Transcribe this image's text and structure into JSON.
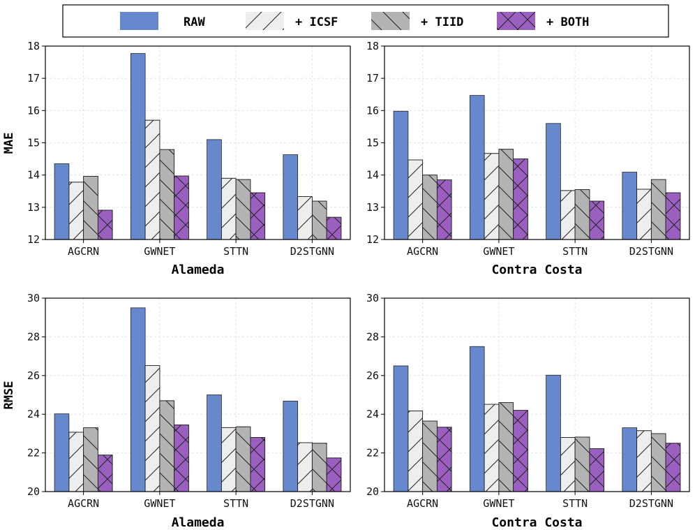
{
  "legend": [
    {
      "key": "raw",
      "label": "RAW",
      "fill": "#6688cc",
      "hatch": "none"
    },
    {
      "key": "icsf",
      "label": "+ ICSF",
      "fill": "#eeeeee",
      "hatch": "fwd"
    },
    {
      "key": "tiid",
      "label": "+ TIID",
      "fill": "#b3b3b3",
      "hatch": "back"
    },
    {
      "key": "both",
      "label": "+ BOTH",
      "fill": "#9b5fc0",
      "hatch": "cross"
    }
  ],
  "chart_data": [
    {
      "type": "bar",
      "id": "mae-alameda",
      "xlabel": "Alameda",
      "ylabel": "MAE",
      "ylim": [
        12,
        18
      ],
      "yticks": [
        "12",
        "13",
        "14",
        "15",
        "16",
        "17",
        "18"
      ],
      "categories": [
        "AGCRN",
        "GWNET",
        "STTN",
        "D2STGNN"
      ],
      "series": [
        {
          "name": "RAW",
          "values": [
            14.35,
            17.77,
            15.1,
            14.63
          ]
        },
        {
          "name": "+ ICSF",
          "values": [
            13.78,
            15.7,
            13.9,
            13.33
          ]
        },
        {
          "name": "+ TIID",
          "values": [
            13.96,
            14.79,
            13.86,
            13.19
          ]
        },
        {
          "name": "+ BOTH",
          "values": [
            12.91,
            13.97,
            13.45,
            12.69
          ]
        }
      ]
    },
    {
      "type": "bar",
      "id": "mae-contra-costa",
      "xlabel": "Contra Costa",
      "ylabel": "",
      "ylim": [
        12,
        18
      ],
      "yticks": [
        "12",
        "13",
        "14",
        "15",
        "16",
        "17",
        "18"
      ],
      "categories": [
        "AGCRN",
        "GWNET",
        "STTN",
        "D2STGNN"
      ],
      "series": [
        {
          "name": "RAW",
          "values": [
            15.98,
            16.47,
            15.6,
            14.09
          ]
        },
        {
          "name": "+ ICSF",
          "values": [
            14.47,
            14.67,
            13.52,
            13.56
          ]
        },
        {
          "name": "+ TIID",
          "values": [
            14.0,
            14.8,
            13.55,
            13.86
          ]
        },
        {
          "name": "+ BOTH",
          "values": [
            13.85,
            14.5,
            13.19,
            13.45
          ]
        }
      ]
    },
    {
      "type": "bar",
      "id": "rmse-alameda",
      "xlabel": "Alameda",
      "ylabel": "RMSE",
      "ylim": [
        20,
        30
      ],
      "yticks": [
        "20",
        "22",
        "24",
        "26",
        "28",
        "30"
      ],
      "categories": [
        "AGCRN",
        "GWNET",
        "STTN",
        "D2STGNN"
      ],
      "series": [
        {
          "name": "RAW",
          "values": [
            24.02,
            29.5,
            25.0,
            24.68
          ]
        },
        {
          "name": "+ ICSF",
          "values": [
            23.07,
            26.52,
            23.31,
            22.53
          ]
        },
        {
          "name": "+ TIID",
          "values": [
            23.3,
            24.7,
            23.35,
            22.5
          ]
        },
        {
          "name": "+ BOTH",
          "values": [
            21.89,
            23.45,
            22.8,
            21.74
          ]
        }
      ]
    },
    {
      "type": "bar",
      "id": "rmse-contra-costa",
      "xlabel": "Contra Costa",
      "ylabel": "",
      "ylim": [
        20,
        30
      ],
      "yticks": [
        "20",
        "22",
        "24",
        "26",
        "28",
        "30"
      ],
      "categories": [
        "AGCRN",
        "GWNET",
        "STTN",
        "D2STGNN"
      ],
      "series": [
        {
          "name": "RAW",
          "values": [
            26.5,
            27.5,
            26.02,
            23.3
          ]
        },
        {
          "name": "+ ICSF",
          "values": [
            24.17,
            24.51,
            22.8,
            23.15
          ]
        },
        {
          "name": "+ TIID",
          "values": [
            23.65,
            24.6,
            22.82,
            23.0
          ]
        },
        {
          "name": "+ BOTH",
          "values": [
            23.33,
            24.2,
            22.22,
            22.5
          ]
        }
      ]
    }
  ]
}
